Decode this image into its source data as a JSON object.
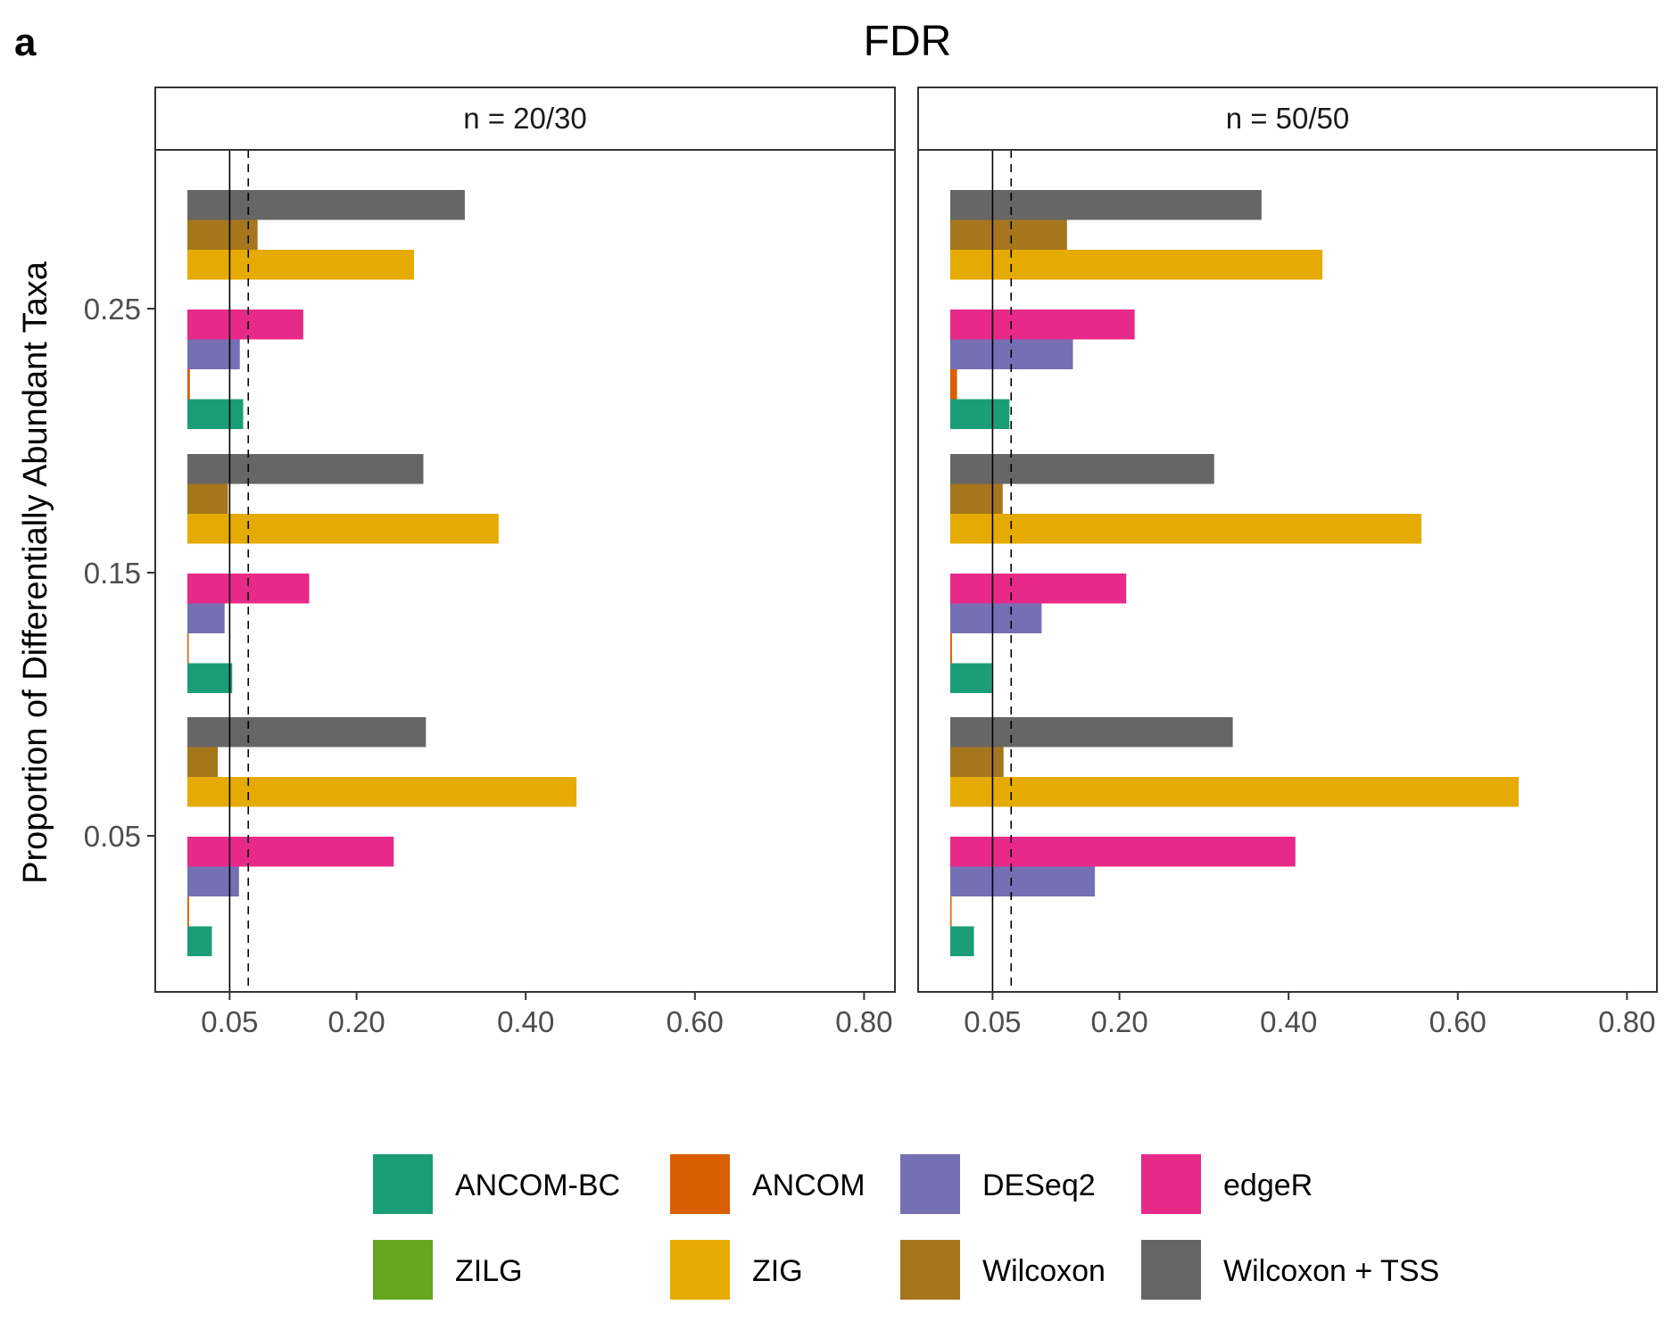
{
  "panel_tag": "a",
  "chart_data": {
    "type": "bar",
    "orientation": "horizontal",
    "title": "FDR",
    "ylabel": "Proportion of Differentially Abundant Taxa",
    "xlabel": "",
    "xlim": [
      0,
      0.88
    ],
    "x_ticks": [
      0.05,
      0.2,
      0.4,
      0.6,
      0.8
    ],
    "x_tick_labels": [
      "0.05",
      "0.20",
      "0.40",
      "0.60",
      "0.80"
    ],
    "y_ticks": [
      "0.25",
      "0.15",
      "0.05"
    ],
    "reference_lines": [
      {
        "value": 0.05,
        "style": "solid"
      },
      {
        "value": 0.072,
        "style": "dashed"
      }
    ],
    "grid": false,
    "legend_position": "bottom",
    "methods": [
      "ANCOM-BC",
      "ANCOM",
      "DESeq2",
      "edgeR",
      "ZILG",
      "ZIG",
      "Wilcoxon",
      "Wilcoxon + TSS"
    ],
    "colors": {
      "ANCOM-BC": "#1b9e77",
      "ANCOM": "#d95f02",
      "DESeq2": "#7570b3",
      "edgeR": "#e7298a",
      "ZILG": "#66a61e",
      "ZIG": "#e6ab02",
      "Wilcoxon": "#a6761d",
      "Wilcoxon + TSS": "#666666"
    },
    "panels": [
      {
        "strip": "n = 20/30",
        "groups": [
          {
            "label": "0.25",
            "values": {
              "ANCOM-BC": 0.066,
              "ANCOM": 0.003,
              "DESeq2": 0.062,
              "edgeR": 0.137,
              "ZILG": 0,
              "ZIG": 0.268,
              "Wilcoxon": 0.083,
              "Wilcoxon + TSS": 0.328
            }
          },
          {
            "label": "0.15",
            "values": {
              "ANCOM-BC": 0.053,
              "ANCOM": 0.001,
              "DESeq2": 0.044,
              "edgeR": 0.144,
              "ZILG": 0,
              "ZIG": 0.368,
              "Wilcoxon": 0.048,
              "Wilcoxon + TSS": 0.279
            }
          },
          {
            "label": "0.05",
            "values": {
              "ANCOM-BC": 0.029,
              "ANCOM": 0.002,
              "DESeq2": 0.061,
              "edgeR": 0.244,
              "ZILG": 0,
              "ZIG": 0.46,
              "Wilcoxon": 0.036,
              "Wilcoxon + TSS": 0.282
            }
          }
        ]
      },
      {
        "strip": "n = 50/50",
        "groups": [
          {
            "label": "0.25",
            "values": {
              "ANCOM-BC": 0.07,
              "ANCOM": 0.008,
              "DESeq2": 0.145,
              "edgeR": 0.218,
              "ZILG": 0,
              "ZIG": 0.44,
              "Wilcoxon": 0.138,
              "Wilcoxon + TSS": 0.368
            }
          },
          {
            "label": "0.15",
            "values": {
              "ANCOM-BC": 0.049,
              "ANCOM": 0.002,
              "DESeq2": 0.108,
              "edgeR": 0.208,
              "ZILG": 0,
              "ZIG": 0.557,
              "Wilcoxon": 0.062,
              "Wilcoxon + TSS": 0.312
            }
          },
          {
            "label": "0.05",
            "values": {
              "ANCOM-BC": 0.028,
              "ANCOM": 0.001,
              "DESeq2": 0.171,
              "edgeR": 0.408,
              "ZILG": 0,
              "ZIG": 0.672,
              "Wilcoxon": 0.063,
              "Wilcoxon + TSS": 0.334
            }
          }
        ]
      }
    ],
    "legend": {
      "rows": [
        [
          "ANCOM-BC",
          "ANCOM",
          "DESeq2",
          "edgeR"
        ],
        [
          "ZILG",
          "ZIG",
          "Wilcoxon",
          "Wilcoxon + TSS"
        ]
      ]
    }
  }
}
